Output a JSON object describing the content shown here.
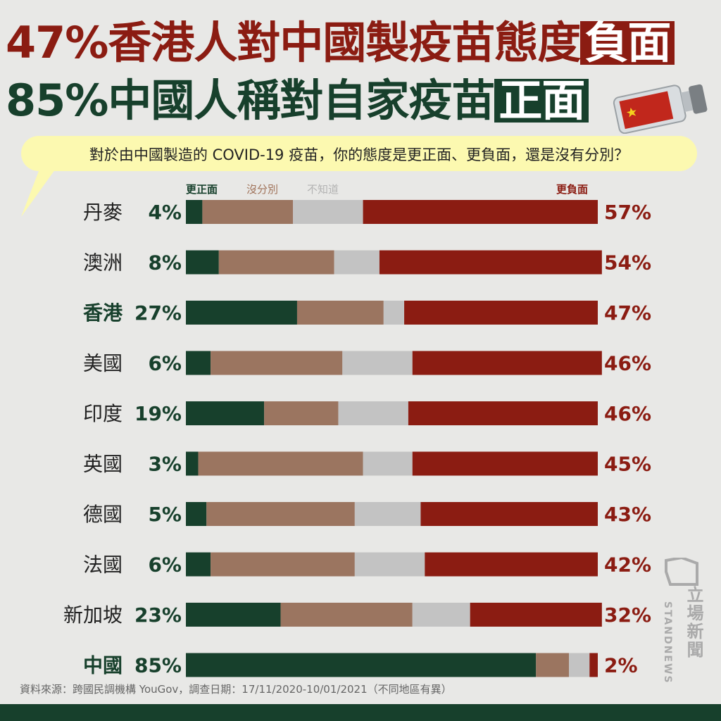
{
  "title": {
    "line1_prefix": "47%香港人對中國製疫苗態度",
    "line1_highlight": "負面",
    "line2_prefix": "85%中國人稱對自家疫苗",
    "line2_highlight": "正面"
  },
  "question": "對於由中國製造的 COVID-19 疫苗，你的態度是更正面、更負面，還是沒有分別？",
  "legend": {
    "positive": "更正面",
    "neutral": "沒分別",
    "unknown": "不知道",
    "negative": "更負面"
  },
  "colors": {
    "positive": "#17402c",
    "neutral": "#9b7560",
    "unknown": "#c3c3c3",
    "negative": "#8b1c12"
  },
  "chart_data": {
    "type": "bar",
    "orientation": "horizontal-stacked",
    "categories": [
      "丹麥",
      "澳洲",
      "香港",
      "美國",
      "印度",
      "英國",
      "德國",
      "法國",
      "新加坡",
      "中國"
    ],
    "highlighted": [
      "香港",
      "中國"
    ],
    "series": [
      {
        "name": "更正面",
        "values": [
          4,
          8,
          27,
          6,
          19,
          3,
          5,
          6,
          23,
          85
        ]
      },
      {
        "name": "沒分別",
        "values": [
          22,
          28,
          21,
          32,
          18,
          40,
          36,
          35,
          32,
          8
        ]
      },
      {
        "name": "不知道",
        "values": [
          17,
          11,
          5,
          17,
          17,
          12,
          16,
          17,
          14,
          5
        ]
      },
      {
        "name": "更負面",
        "values": [
          57,
          54,
          47,
          46,
          46,
          45,
          43,
          42,
          32,
          2
        ]
      }
    ],
    "positive_labels": [
      "4%",
      "8%",
      "27%",
      "6%",
      "19%",
      "3%",
      "5%",
      "6%",
      "23%",
      "85%"
    ],
    "negative_labels": [
      "57%",
      "54%",
      "47%",
      "46%",
      "46%",
      "45%",
      "43%",
      "42%",
      "32%",
      "2%"
    ],
    "xlim": [
      0,
      100
    ],
    "legend_position": "top"
  },
  "source": "資料來源：跨國民調機構 YouGov，調查日期：17/11/2020-10/01/2021（不同地區有異）",
  "brand": {
    "chinese": "立場新聞",
    "english": "STANDNEWS",
    "icon": "standnews-logo-icon"
  },
  "decoration": {
    "image": "china-flag-vaccine-vial-icon"
  }
}
